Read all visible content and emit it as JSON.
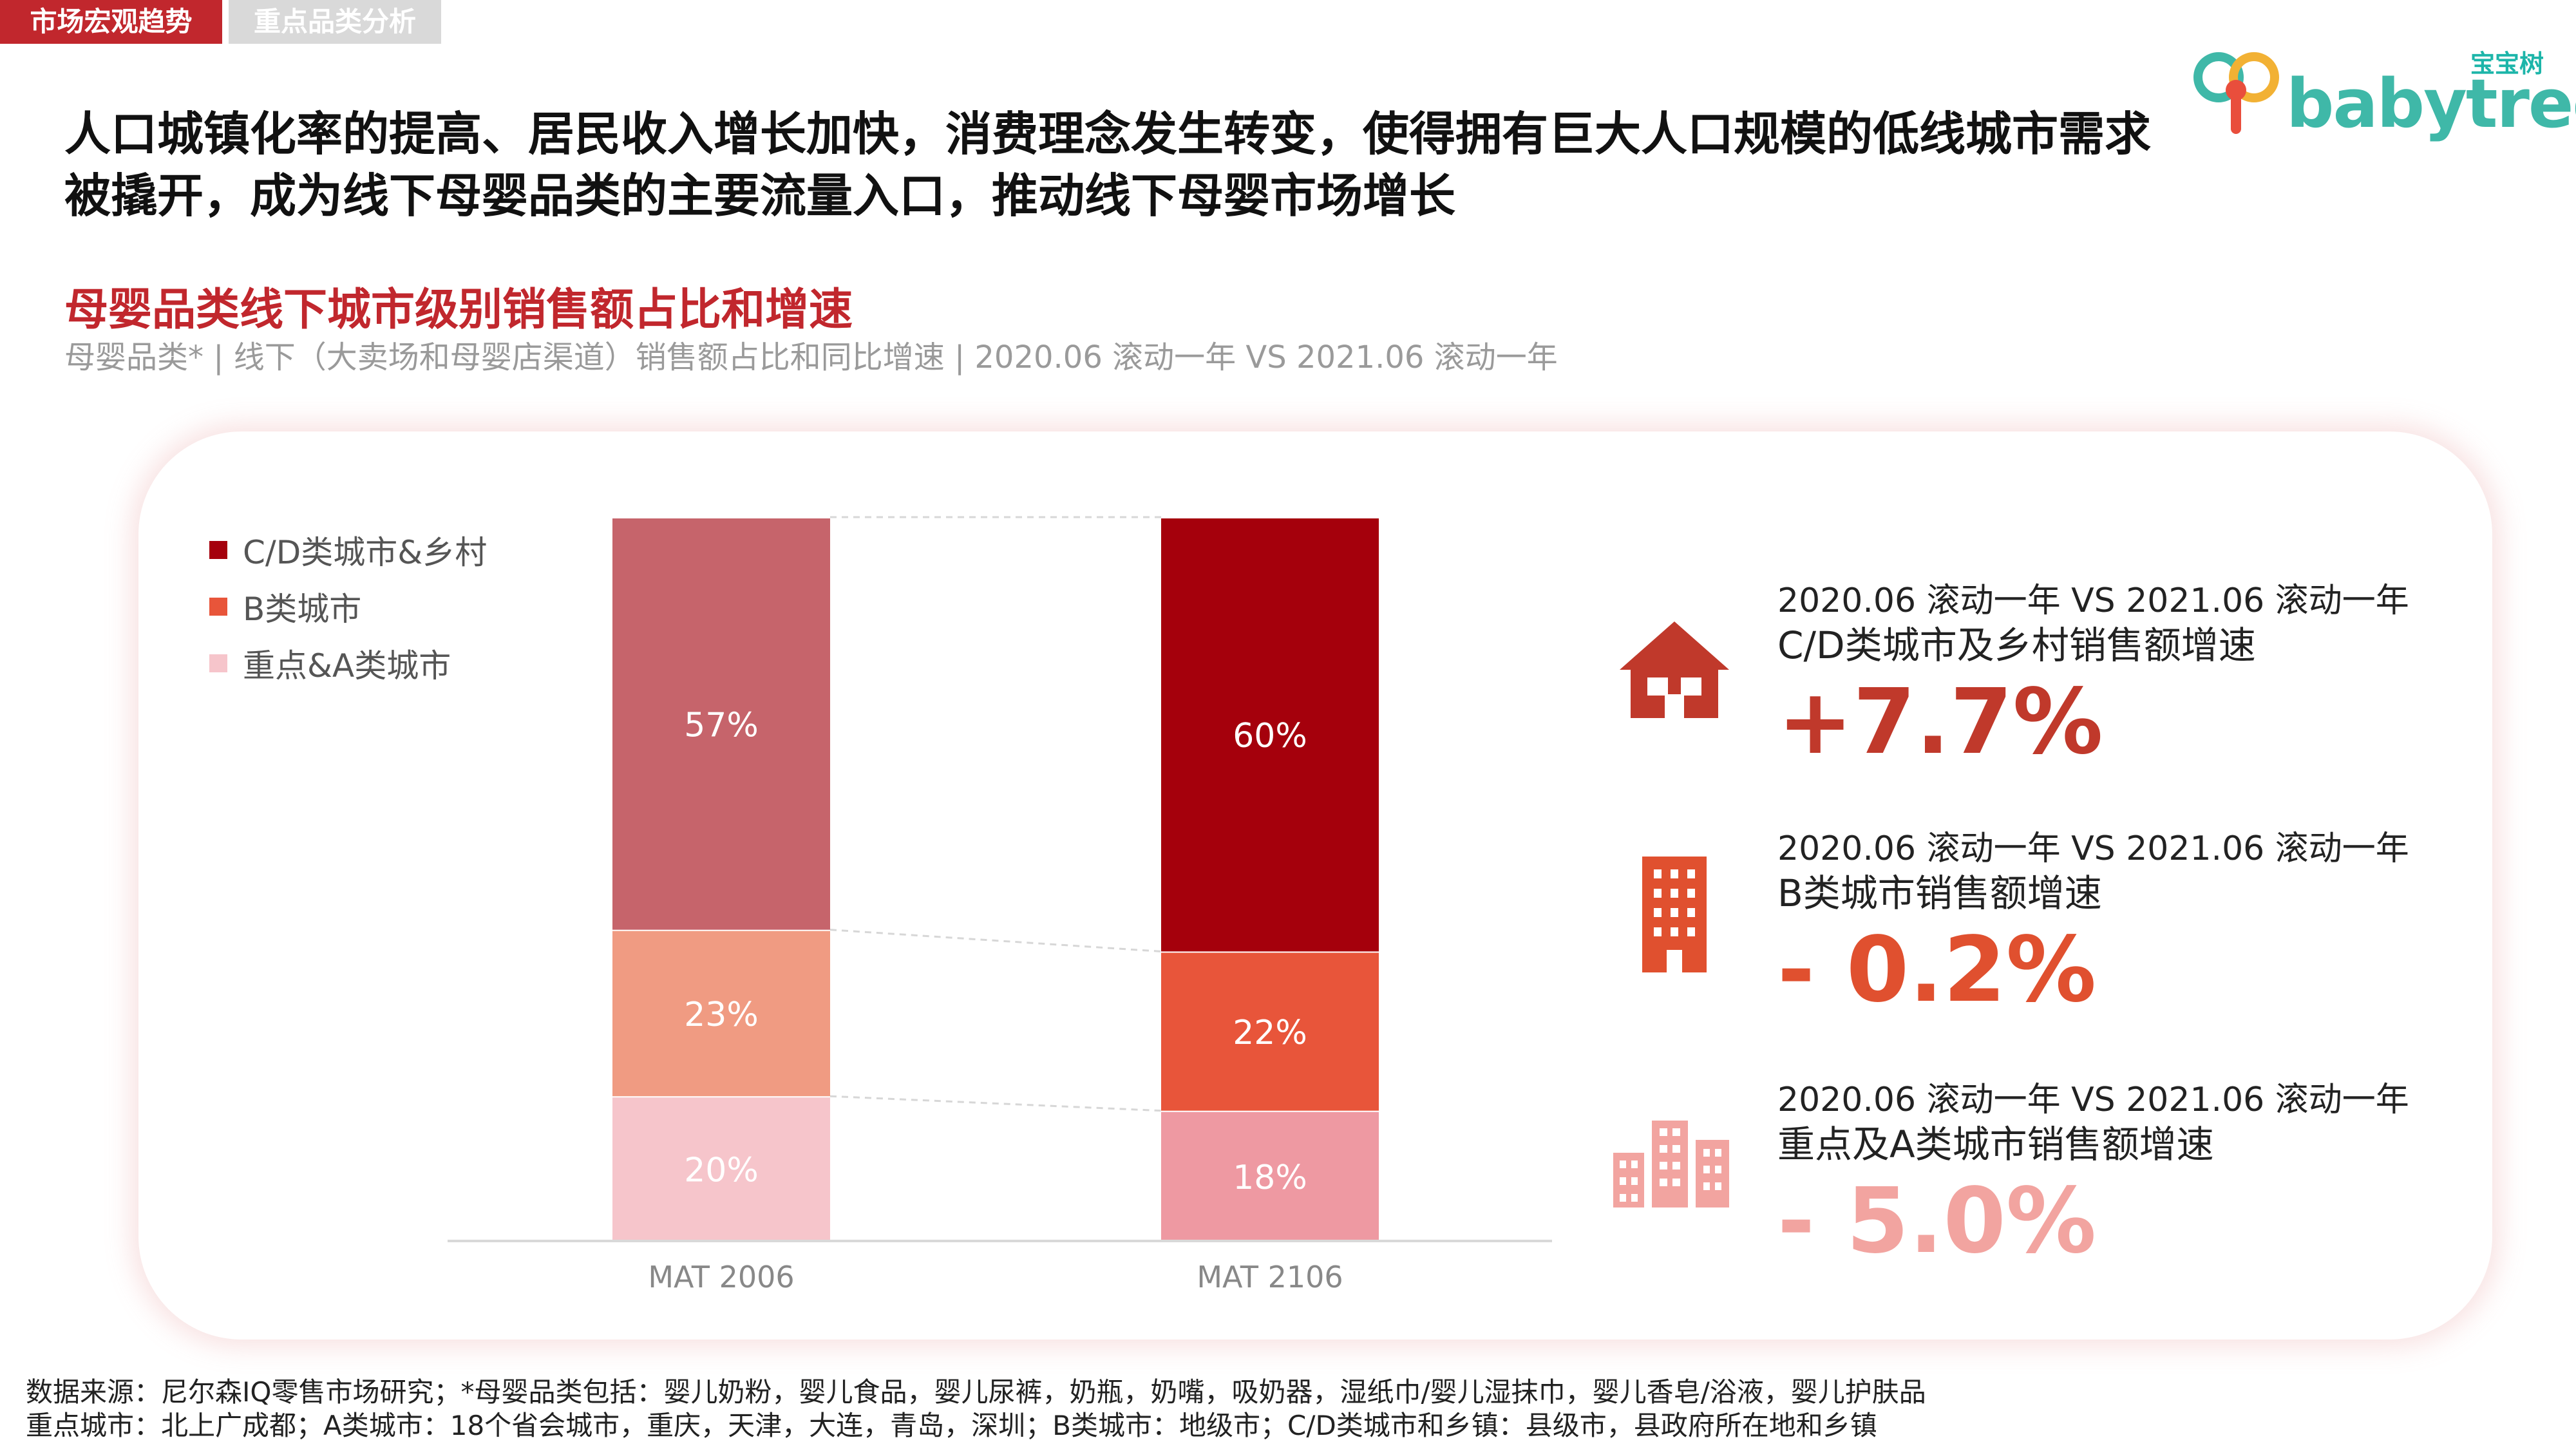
{
  "tabs": [
    {
      "label": "市场宏观趋势",
      "active": true
    },
    {
      "label": "重点品类分析",
      "active": false
    }
  ],
  "logo": {
    "text_cn": "宝宝树",
    "text_en": "babytree"
  },
  "headline": "人口城镇化率的提高、居民收入增长加快，消费理念发生转变，使得拥有巨大人口规模的低线城市需求被撬开，成为线下母婴品类的主要流量入口，推动线下母婴市场增长",
  "chart_title": "母婴品类线下城市级别销售额占比和增速",
  "chart_subtitle": "母婴品类* | 线下（大卖场和母婴店渠道）销售额占比和同比增速 | 2020.06 滚动一年 VS 2021.06 滚动一年",
  "chart_data": {
    "type": "bar",
    "stacked": true,
    "unit": "%",
    "categories": [
      "MAT 2006",
      "MAT 2106"
    ],
    "ylim": [
      0,
      100
    ],
    "legend_position": "top-left",
    "grid": false,
    "series": [
      {
        "name": "重点&A类城市",
        "values": [
          20,
          18
        ],
        "labels": [
          "20%",
          "18%"
        ],
        "colors": [
          "#f6c5cb",
          "#ee99a2"
        ]
      },
      {
        "name": "B类城市",
        "values": [
          23,
          22
        ],
        "labels": [
          "23%",
          "22%"
        ],
        "colors": [
          "#f09b82",
          "#e8553a"
        ]
      },
      {
        "name": "C/D类城市&乡村",
        "values": [
          57,
          60
        ],
        "labels": [
          "57%",
          "60%"
        ],
        "colors": [
          "#c6646b",
          "#a5000c"
        ]
      }
    ],
    "legend": [
      {
        "name": "C/D类城市&乡村",
        "color": "#a5000c"
      },
      {
        "name": "B类城市",
        "color": "#e8553a"
      },
      {
        "name": "重点&A类城市",
        "color": "#f6c5cb"
      }
    ]
  },
  "stats": [
    {
      "icon": "house-icon",
      "period": "2020.06 滚动一年 VS 2021.06 滚动一年",
      "label": "C/D类城市及乡村销售额增速",
      "value": "+7.7%",
      "color": "#c0392b"
    },
    {
      "icon": "office-building-icon",
      "period": "2020.06 滚动一年 VS 2021.06 滚动一年",
      "label": "B类城市销售额增速",
      "value": "- 0.2%",
      "color": "#e0502f"
    },
    {
      "icon": "city-buildings-icon",
      "period": "2020.06 滚动一年 VS 2021.06 滚动一年",
      "label": "重点及A类城市销售额增速",
      "value": "- 5.0%",
      "color": "#f2a4a0"
    }
  ],
  "footnotes": [
    "数据来源：尼尔森IQ零售市场研究；*母婴品类包括：婴儿奶粉，婴儿食品，婴儿尿裤，奶瓶，奶嘴，吸奶器，湿纸巾/婴儿湿抹巾，婴儿香皂/浴液，婴儿护肤品",
    "重点城市：北上广成都；A类城市：18个省会城市，重庆，天津，大连，青岛，深圳；B类城市：地级市；C/D类城市和乡镇：县级市，县政府所在地和乡镇"
  ]
}
